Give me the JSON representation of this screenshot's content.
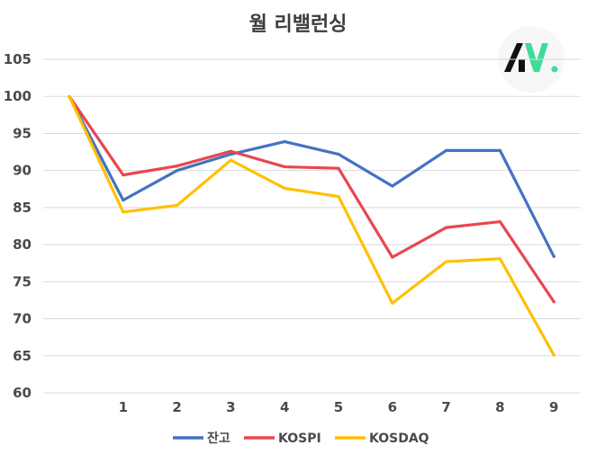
{
  "chart_data": {
    "type": "line",
    "title": "월 리밸런싱",
    "x": [
      0,
      1,
      2,
      3,
      4,
      5,
      6,
      7,
      8,
      9
    ],
    "x_tick_labels": [
      "",
      "1",
      "2",
      "3",
      "4",
      "5",
      "6",
      "7",
      "8",
      "9"
    ],
    "y_ticks": [
      60,
      65,
      70,
      75,
      80,
      85,
      90,
      95,
      100,
      105
    ],
    "ylim": [
      60,
      107
    ],
    "grid": true,
    "legend_position": "bottom",
    "series": [
      {
        "name": "잔고",
        "color": "#4472c4",
        "values": [
          100,
          86.0,
          90.0,
          92.2,
          93.9,
          92.2,
          87.9,
          92.7,
          92.7,
          78.4
        ]
      },
      {
        "name": "KOSPI",
        "color": "#e8474e",
        "values": [
          100,
          89.4,
          90.6,
          92.6,
          90.5,
          90.3,
          78.3,
          82.3,
          83.1,
          72.3
        ]
      },
      {
        "name": "KOSDAQ",
        "color": "#ffc000",
        "values": [
          100,
          84.4,
          85.3,
          91.4,
          87.6,
          86.5,
          72.1,
          77.7,
          78.1,
          65.1
        ]
      }
    ]
  },
  "logo": {
    "text": "AW.",
    "icon": "aw-logo-icon",
    "colors": [
      "#111111",
      "#3ddc97"
    ]
  }
}
